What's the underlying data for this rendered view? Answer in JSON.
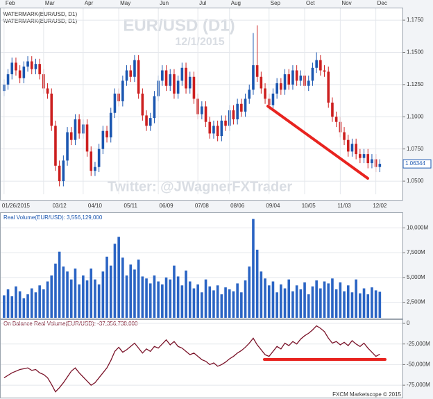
{
  "footer": "FXCM Marketscope © 2015",
  "chart_data": [
    {
      "type": "candlestick",
      "title": "EUR/USD (D1)",
      "subtitle": "12/1/2015",
      "annotation": "Twitter: @JWagnerFXTrader",
      "legend": [
        "WATERMARK(EUR/USD, D1)",
        "WATERMARK(EUR/USD, D1)"
      ],
      "up_color": "#1a56b0",
      "down_color": "#cc1f1f",
      "top_categories": [
        "Feb",
        null,
        null,
        null,
        null,
        null,
        null,
        null,
        null,
        null,
        "Mar",
        null,
        null,
        null,
        null,
        null,
        null,
        null,
        null,
        null,
        "Apr",
        null,
        null,
        null,
        null,
        null,
        null,
        null,
        null,
        "May",
        null,
        null,
        null,
        null,
        null,
        null,
        null,
        null,
        null,
        "Jun",
        null,
        null,
        null,
        null,
        null,
        null,
        null,
        null,
        null,
        "Jul",
        null,
        null,
        null,
        null,
        null,
        null,
        null,
        "Aug",
        null,
        null,
        null,
        null,
        null,
        null,
        null,
        null,
        null,
        "Sep",
        null,
        null,
        null,
        null,
        null,
        null,
        null,
        null,
        "Oct",
        null,
        null,
        null,
        null,
        null,
        null,
        null,
        null,
        "Nov",
        null,
        null,
        null,
        null,
        null,
        null,
        null,
        null,
        "Dec",
        null
      ],
      "categories": [
        null,
        null,
        null,
        "01/26/2015",
        null,
        null,
        null,
        null,
        null,
        null,
        null,
        null,
        null,
        null,
        "03/12",
        null,
        null,
        null,
        null,
        null,
        null,
        null,
        null,
        "04/10",
        null,
        null,
        null,
        null,
        null,
        null,
        null,
        null,
        "05/11",
        null,
        null,
        null,
        null,
        null,
        null,
        null,
        null,
        "06/09",
        null,
        null,
        null,
        null,
        null,
        null,
        null,
        null,
        "07/08",
        null,
        null,
        null,
        null,
        null,
        null,
        null,
        null,
        "08/06",
        null,
        null,
        null,
        null,
        null,
        null,
        null,
        null,
        "09/04",
        null,
        null,
        null,
        null,
        null,
        null,
        null,
        null,
        "10/05",
        null,
        null,
        null,
        null,
        null,
        null,
        null,
        null,
        "11/03",
        null,
        null,
        null,
        null,
        null,
        null,
        null,
        null,
        "12/02"
      ],
      "open": [
        1.12,
        1.125,
        1.133,
        1.142,
        1.136,
        1.13,
        1.139,
        1.143,
        1.137,
        1.141,
        1.133,
        1.122,
        1.118,
        1.093,
        1.062,
        1.05,
        1.066,
        1.088,
        1.082,
        1.098,
        1.087,
        1.094,
        1.073,
        1.058,
        1.061,
        1.075,
        1.089,
        1.084,
        1.103,
        1.118,
        1.112,
        1.128,
        1.136,
        1.131,
        1.144,
        1.118,
        1.101,
        1.093,
        1.099,
        1.116,
        1.128,
        1.136,
        1.124,
        1.133,
        1.118,
        1.128,
        1.138,
        1.122,
        1.131,
        1.114,
        1.102,
        1.108,
        1.096,
        1.087,
        1.093,
        1.085,
        1.097,
        1.093,
        1.105,
        1.098,
        1.11,
        1.104,
        1.114,
        1.121,
        1.14,
        1.131,
        1.122,
        1.114,
        1.109,
        1.118,
        1.126,
        1.121,
        1.133,
        1.125,
        1.136,
        1.128,
        1.132,
        1.124,
        1.128,
        1.138,
        1.144,
        1.136,
        1.135,
        1.111,
        1.1,
        1.096,
        1.088,
        1.082,
        1.073,
        1.079,
        1.071,
        1.068,
        1.071,
        1.064,
        1.067,
        1.061
      ],
      "high": [
        1.129,
        1.137,
        1.146,
        1.146,
        1.14,
        1.143,
        1.147,
        1.147,
        1.145,
        1.145,
        1.137,
        1.126,
        1.122,
        1.097,
        1.066,
        1.07,
        1.092,
        1.092,
        1.102,
        1.102,
        1.098,
        1.098,
        1.077,
        1.065,
        1.079,
        1.093,
        1.093,
        1.107,
        1.122,
        1.122,
        1.132,
        1.14,
        1.14,
        1.148,
        1.148,
        1.122,
        1.105,
        1.103,
        1.12,
        1.132,
        1.14,
        1.14,
        1.137,
        1.137,
        1.132,
        1.142,
        1.142,
        1.135,
        1.135,
        1.118,
        1.112,
        1.112,
        1.1,
        1.097,
        1.097,
        1.101,
        1.101,
        1.109,
        1.109,
        1.114,
        1.114,
        1.118,
        1.125,
        1.165,
        1.171,
        1.135,
        1.126,
        1.118,
        1.122,
        1.13,
        1.13,
        1.137,
        1.137,
        1.14,
        1.14,
        1.136,
        1.136,
        1.132,
        1.142,
        1.15,
        1.148,
        1.14,
        1.139,
        1.115,
        1.104,
        1.1,
        1.092,
        1.086,
        1.083,
        1.083,
        1.075,
        1.075,
        1.075,
        1.071,
        1.071,
        1.067
      ],
      "low": [
        1.116,
        1.121,
        1.129,
        1.132,
        1.126,
        1.126,
        1.135,
        1.133,
        1.133,
        1.129,
        1.118,
        1.114,
        1.089,
        1.058,
        1.046,
        1.046,
        1.062,
        1.078,
        1.078,
        1.083,
        1.083,
        1.069,
        1.054,
        1.054,
        1.057,
        1.071,
        1.08,
        1.08,
        1.099,
        1.108,
        1.108,
        1.124,
        1.127,
        1.127,
        1.114,
        1.097,
        1.089,
        1.089,
        1.095,
        1.112,
        1.124,
        1.12,
        1.12,
        1.114,
        1.114,
        1.124,
        1.118,
        1.118,
        1.11,
        1.098,
        1.098,
        1.092,
        1.083,
        1.083,
        1.081,
        1.081,
        1.089,
        1.089,
        1.094,
        1.094,
        1.1,
        1.1,
        1.11,
        1.117,
        1.127,
        1.118,
        1.11,
        1.105,
        1.105,
        1.114,
        1.117,
        1.117,
        1.121,
        1.121,
        1.124,
        1.124,
        1.12,
        1.12,
        1.124,
        1.134,
        1.132,
        1.131,
        1.107,
        1.096,
        1.092,
        1.084,
        1.078,
        1.069,
        1.069,
        1.067,
        1.064,
        1.064,
        1.06,
        1.06,
        1.057,
        1.057
      ],
      "close": [
        1.125,
        1.133,
        1.142,
        1.136,
        1.13,
        1.139,
        1.143,
        1.137,
        1.141,
        1.133,
        1.122,
        1.118,
        1.093,
        1.062,
        1.05,
        1.066,
        1.088,
        1.082,
        1.098,
        1.087,
        1.094,
        1.073,
        1.058,
        1.061,
        1.075,
        1.089,
        1.084,
        1.103,
        1.118,
        1.112,
        1.128,
        1.136,
        1.131,
        1.144,
        1.118,
        1.101,
        1.093,
        1.099,
        1.116,
        1.128,
        1.136,
        1.124,
        1.133,
        1.118,
        1.128,
        1.138,
        1.122,
        1.131,
        1.114,
        1.102,
        1.108,
        1.096,
        1.087,
        1.093,
        1.085,
        1.097,
        1.093,
        1.105,
        1.098,
        1.11,
        1.104,
        1.114,
        1.121,
        1.14,
        1.131,
        1.122,
        1.114,
        1.109,
        1.118,
        1.126,
        1.121,
        1.133,
        1.125,
        1.136,
        1.128,
        1.132,
        1.124,
        1.128,
        1.138,
        1.144,
        1.136,
        1.135,
        1.111,
        1.1,
        1.096,
        1.088,
        1.082,
        1.073,
        1.079,
        1.071,
        1.068,
        1.071,
        1.064,
        1.067,
        1.061,
        1.06344
      ],
      "ylim": [
        1.0398,
        1.1842
      ],
      "yticks": [
        {
          "value": 1.05,
          "label": "1.0500"
        },
        {
          "value": 1.075,
          "label": "1.0750"
        },
        {
          "value": 1.1,
          "label": "1.1000"
        },
        {
          "value": 1.125,
          "label": "1.1250"
        },
        {
          "value": 1.15,
          "label": "1.1500"
        },
        {
          "value": 1.175,
          "label": "1.1750"
        }
      ],
      "grid": true
    },
    {
      "type": "bar",
      "title": "Real Volume(EUR/USD): 3,556,129,000",
      "color": "#2a64c4",
      "values": [
        3200,
        3800,
        3100,
        4100,
        3600,
        2900,
        3300,
        3900,
        3500,
        4200,
        3800,
        4600,
        5200,
        6400,
        7600,
        6100,
        5600,
        4800,
        5900,
        4300,
        5200,
        4700,
        5900,
        4800,
        4300,
        5600,
        7100,
        6200,
        8400,
        9100,
        7000,
        5200,
        6300,
        5800,
        6800,
        5100,
        4900,
        4400,
        5200,
        4600,
        4300,
        5000,
        4800,
        6200,
        5100,
        4200,
        5700,
        4600,
        3900,
        4300,
        3500,
        4800,
        4100,
        3700,
        4200,
        3300,
        4000,
        3800,
        3600,
        4400,
        3500,
        4700,
        6100,
        10900,
        7800,
        5600,
        4900,
        4200,
        4600,
        3500,
        4300,
        3900,
        4800,
        3600,
        4200,
        3800,
        4500,
        3300,
        4100,
        4700,
        3900,
        4600,
        4400,
        4900,
        3800,
        4500,
        3600,
        4200,
        3500,
        4800,
        3400,
        3900,
        3300,
        4000,
        3700,
        3556
      ],
      "ylim": [
        929,
        11430
      ],
      "yticks": [
        {
          "value": 2500,
          "label": "2,500M"
        },
        {
          "value": 5000,
          "label": "5,000M"
        },
        {
          "value": 7500,
          "label": "7,500M"
        },
        {
          "value": 10000,
          "label": "10,000M"
        }
      ],
      "grid": true
    },
    {
      "type": "line",
      "title": "On Balance Real Volume(EUR/USD): -37,356,738,000",
      "color": "#7a1228",
      "values": [
        -66000,
        -63000,
        -60000,
        -58000,
        -56000,
        -55000,
        -54000,
        -57000,
        -56000,
        -60000,
        -62000,
        -66000,
        -74000,
        -83000,
        -78000,
        -72000,
        -65000,
        -58000,
        -54000,
        -60000,
        -65000,
        -70000,
        -75000,
        -72000,
        -66000,
        -60000,
        -54000,
        -45000,
        -34000,
        -29000,
        -35000,
        -32000,
        -28000,
        -24000,
        -30000,
        -36000,
        -31000,
        -34000,
        -28000,
        -30000,
        -25000,
        -20000,
        -26000,
        -22000,
        -28000,
        -30000,
        -34000,
        -38000,
        -36000,
        -40000,
        -44000,
        -46000,
        -50000,
        -48000,
        -52000,
        -50000,
        -47000,
        -43000,
        -40000,
        -36000,
        -33000,
        -29000,
        -24000,
        -18000,
        -26000,
        -32000,
        -38000,
        -40000,
        -34000,
        -28000,
        -31000,
        -24000,
        -27000,
        -22000,
        -25000,
        -19000,
        -15000,
        -12000,
        -8000,
        -3000,
        -6000,
        -10000,
        -18000,
        -24000,
        -22000,
        -26000,
        -23000,
        -27000,
        -21000,
        -25000,
        -28000,
        -24000,
        -30000,
        -35000,
        -40000,
        -37357
      ],
      "ylim": [
        -89200,
        3370
      ],
      "yticks": [
        {
          "value": -75000,
          "label": "-75,000M"
        },
        {
          "value": -50000,
          "label": "-50,000M"
        },
        {
          "value": -25000,
          "label": "-25,000M"
        },
        0
      ],
      "grid": true
    }
  ]
}
